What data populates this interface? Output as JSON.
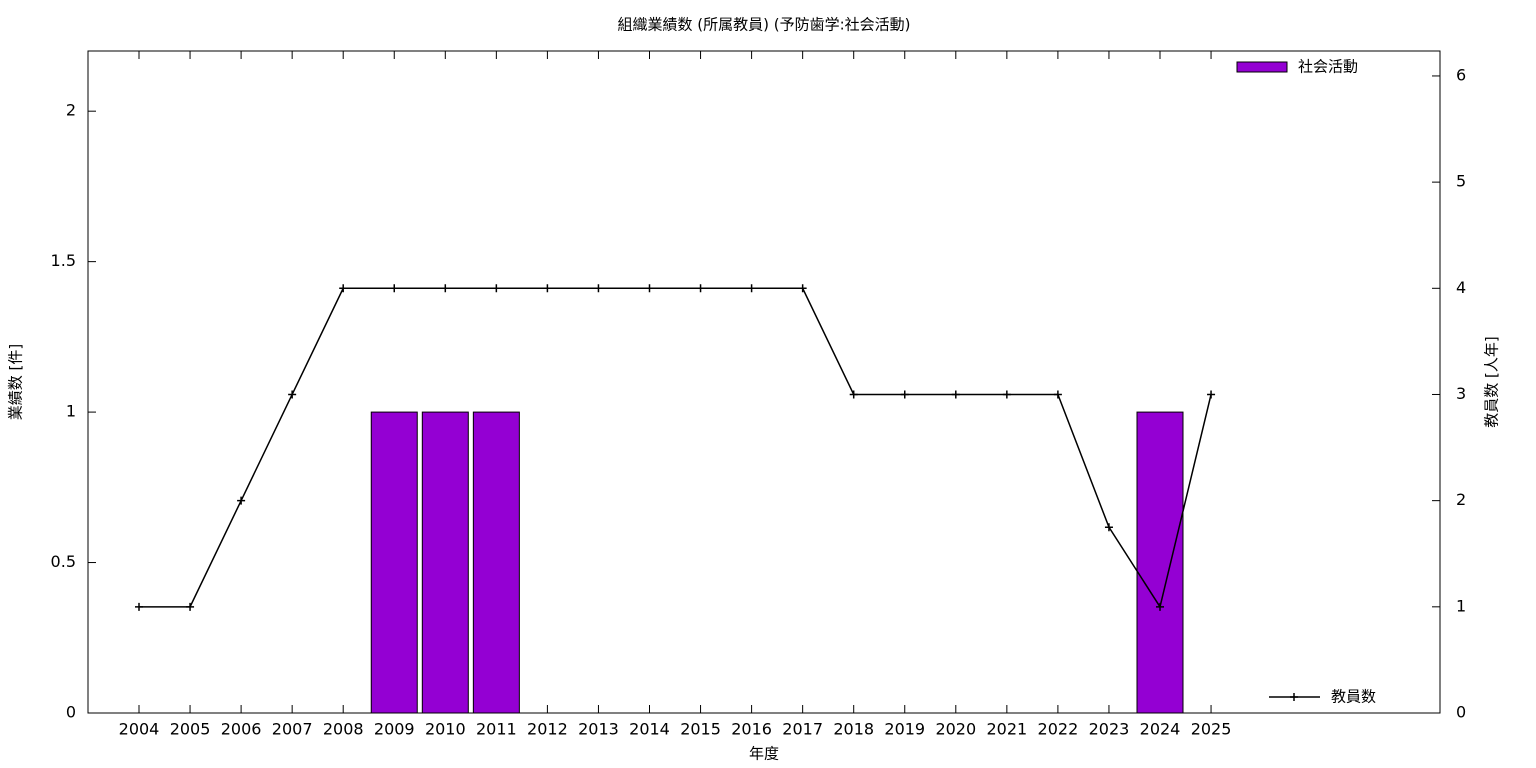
{
  "chart_data": {
    "type": "bar_line",
    "title": "組織業績数 (所属教員) (予防歯学:社会活動)",
    "x_label": "年度",
    "y_label": "業績数 [件]",
    "y2_label": "教員数 [人年]",
    "categories": [
      "2004",
      "2005",
      "2006",
      "2007",
      "2008",
      "2009",
      "2010",
      "2011",
      "2012",
      "2013",
      "2014",
      "2015",
      "2016",
      "2017",
      "2018",
      "2019",
      "2020",
      "2021",
      "2022",
      "2023",
      "2024",
      "2025"
    ],
    "series": [
      {
        "name": "社会活動",
        "type": "bar",
        "color": "#9400d3",
        "values": [
          0,
          0,
          0,
          0,
          0,
          1,
          1,
          1,
          0,
          0,
          0,
          0,
          0,
          0,
          0,
          0,
          0,
          0,
          0,
          0,
          1,
          0
        ]
      },
      {
        "name": "教員数",
        "type": "line",
        "axis": "y2",
        "color": "#000000",
        "values": [
          1,
          1,
          2,
          3,
          4,
          4,
          4,
          4,
          4,
          4,
          4,
          4,
          4,
          4,
          3,
          3,
          3,
          3,
          3,
          1.75,
          1,
          3
        ]
      }
    ],
    "ylim": [
      0,
      2.2
    ],
    "yticks": [
      0,
      0.5,
      1,
      1.5,
      2
    ],
    "y2lim": [
      0,
      6.235
    ],
    "y2ticks": [
      0,
      1,
      2,
      3,
      4,
      5,
      6
    ]
  }
}
